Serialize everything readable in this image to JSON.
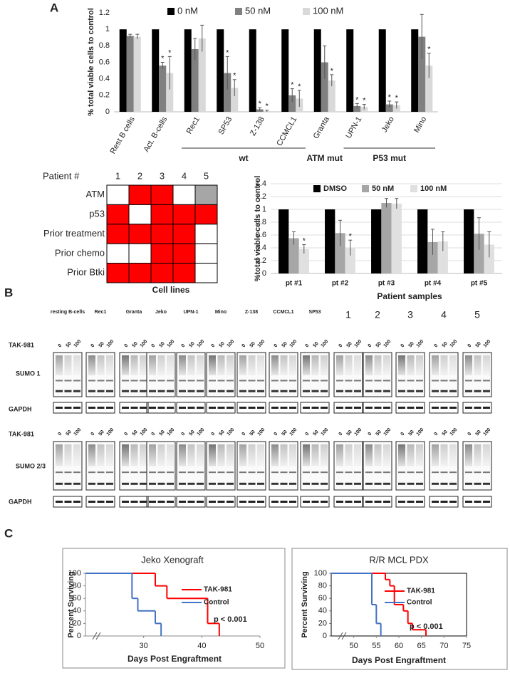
{
  "panels": [
    "A",
    "B",
    "C"
  ],
  "chart_data": [
    {
      "type": "bar",
      "ylabel": "% total viable cells to control",
      "categories": [
        "Rest B cells",
        "Act. B-cells",
        "Rec1",
        "SP53",
        "Z-138",
        "CCMCL1",
        "Granta",
        "UPN-1",
        "Jeko",
        "Mino"
      ],
      "series": [
        {
          "name": "0 nM",
          "color": "#000000",
          "values": [
            1,
            1,
            1,
            1,
            1,
            1,
            1,
            1,
            1,
            1
          ]
        },
        {
          "name": "50  nM",
          "color": "#808080",
          "values": [
            0.92,
            0.56,
            0.76,
            0.47,
            0.03,
            0.2,
            0.6,
            0.07,
            0.09,
            0.91
          ],
          "errors": [
            0.02,
            0.04,
            0.13,
            0.2,
            0.02,
            0.08,
            0.2,
            0.03,
            0.04,
            0.27
          ],
          "markers": [
            null,
            "*",
            null,
            "*",
            "*",
            "*",
            null,
            "*",
            "*",
            null
          ]
        },
        {
          "name": "100 nM",
          "color": "#d9d9d9",
          "values": [
            0.91,
            0.47,
            0.89,
            0.29,
            0.01,
            0.16,
            0.38,
            0.06,
            0.08,
            0.56
          ],
          "errors": [
            0.03,
            0.2,
            0.16,
            0.1,
            0.01,
            0.1,
            0.07,
            0.03,
            0.04,
            0.15
          ],
          "markers": [
            null,
            "*",
            null,
            "*",
            "*",
            "*",
            "*",
            "*",
            "*",
            "*"
          ]
        }
      ],
      "groups": [
        {
          "label": "wt",
          "categories": [
            "Rec1",
            "SP53",
            "Z-138",
            "CCMCL1"
          ]
        },
        {
          "label": "ATM mut",
          "categories": [
            "Granta"
          ]
        },
        {
          "label": "P53 mut",
          "categories": [
            "UPN-1",
            "Jeko",
            "Mino"
          ]
        }
      ],
      "ylim": [
        0,
        1.2
      ],
      "yticks": [
        0,
        0.2,
        0.4,
        0.6,
        0.8,
        1,
        1.2
      ],
      "grid": false,
      "legend": "top"
    },
    {
      "type": "bar",
      "ylabel": "%total viable cells to control",
      "categories": [
        "pt #1",
        "pt #2",
        "pt #3",
        "pt #4",
        "pt #5"
      ],
      "series": [
        {
          "name": "DMSO",
          "color": "#000000",
          "values": [
            1,
            1,
            1,
            1,
            1
          ]
        },
        {
          "name": "50 nM",
          "color": "#a6a6a6",
          "values": [
            0.55,
            0.63,
            1.1,
            0.49,
            0.62
          ],
          "errors": [
            0.1,
            0.2,
            0.07,
            0.2,
            0.25
          ]
        },
        {
          "name": "100 nM",
          "color": "#e0e0e0",
          "values": [
            0.38,
            0.4,
            1.09,
            0.5,
            0.45
          ],
          "errors": [
            0.07,
            0.12,
            0.08,
            0.15,
            0.2
          ],
          "markers": [
            "*",
            "*",
            null,
            null,
            null
          ]
        }
      ],
      "ylim": [
        0,
        1.4
      ],
      "yticks": [
        0,
        0.2,
        0.4,
        0.6,
        0.8,
        1,
        1.2,
        1.4
      ],
      "grid": true,
      "legend": "top"
    },
    {
      "type": "step",
      "title": "Jeko Xenograft",
      "xlabel": "Days Post Engraftment",
      "ylabel": "Percent Surviving",
      "series": [
        {
          "name": "TAK-981",
          "color": "#ff0000",
          "x": [
            20,
            32,
            34,
            41,
            43
          ],
          "values": [
            100,
            80,
            60,
            20,
            0
          ]
        },
        {
          "name": "Control",
          "color": "#4472c4",
          "x": [
            20,
            28,
            29,
            32,
            33
          ],
          "values": [
            100,
            60,
            40,
            20,
            0
          ]
        }
      ],
      "xlim": [
        20,
        50
      ],
      "xticks": [
        30,
        40,
        50
      ],
      "ylim": [
        0,
        100
      ],
      "yticks": [
        0,
        20,
        40,
        60,
        80,
        100
      ],
      "annotation": "p < 0.001",
      "legend": "right"
    },
    {
      "type": "step",
      "title": "R/R MCL PDX",
      "xlabel": "Days Post Engraftment",
      "ylabel": "Percent Surviving",
      "series": [
        {
          "name": "TAK-981",
          "color": "#ff0000",
          "x": [
            45,
            57,
            58,
            59,
            61,
            62,
            63,
            66
          ],
          "values": [
            100,
            90,
            80,
            50,
            40,
            20,
            10,
            0
          ]
        },
        {
          "name": "Control",
          "color": "#4472c4",
          "x": [
            45,
            54,
            55,
            56
          ],
          "values": [
            100,
            50,
            20,
            0
          ]
        }
      ],
      "xlim": [
        45,
        75
      ],
      "xticks": [
        50,
        55,
        60,
        65,
        70,
        75
      ],
      "ylim": [
        0,
        100
      ],
      "yticks": [
        0,
        20,
        40,
        60,
        80,
        100
      ],
      "annotation": "p < 0.001",
      "legend": "right"
    }
  ],
  "patient_table": {
    "header": "Patient #",
    "columns": [
      "1",
      "2",
      "3",
      "4",
      "5"
    ],
    "rows": [
      {
        "label": "ATM",
        "cells": [
          "#ffffff",
          "#ff0000",
          "#ff0000",
          "#ffffff",
          "#a6a6a6"
        ]
      },
      {
        "label": "p53",
        "cells": [
          "#ff0000",
          "#ffffff",
          "#ff0000",
          "#ff0000",
          "#ff0000"
        ]
      },
      {
        "label": "Prior treatment",
        "cells": [
          "#ff0000",
          "#ff0000",
          "#ff0000",
          "#ff0000",
          "#ffffff"
        ]
      },
      {
        "label": "Prior chemo",
        "cells": [
          "#ffffff",
          "#ffffff",
          "#ff0000",
          "#ff0000",
          "#ffffff"
        ]
      },
      {
        "label": "Prior Btki",
        "cells": [
          "#ff0000",
          "#ff0000",
          "#ff0000",
          "#ff0000",
          "#ffffff"
        ]
      }
    ]
  },
  "blots": {
    "cell_lines_title": "Cell lines",
    "patients_title": "Patient samples",
    "cell_lines": [
      "resting B-cells",
      "Rec1",
      "Granta",
      "Jeko",
      "UPN-1",
      "Mino",
      "Z-138",
      "CCMCL1",
      "SP53"
    ],
    "patients": [
      "1",
      "2",
      "3",
      "4",
      "5"
    ],
    "doses": [
      "0",
      "50",
      "100"
    ],
    "rows": [
      "TAK-981",
      "SUMO 1",
      "GAPDH",
      "TAK-981",
      "SUMO 2/3",
      "GAPDH"
    ]
  }
}
